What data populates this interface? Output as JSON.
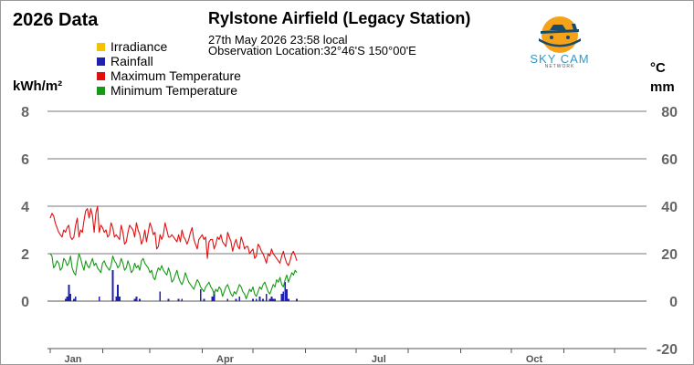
{
  "page": {
    "year_title": "2026 Data",
    "station_title": "Rylstone Airfield (Legacy Station)",
    "observation_time": "27th May 2026  23:58 local",
    "observation_location": "Observation Location:32°46'S 150°00'E",
    "unit_left": "kWh/m²",
    "unit_right_top": "°C",
    "unit_right_bottom": "mm"
  },
  "logo": {
    "name": "SKY CAM",
    "subtitle": "NETWORK"
  },
  "legend": [
    {
      "label": "Irradiance",
      "color": "#f2c200"
    },
    {
      "label": "Rainfall",
      "color": "#1f1fb0"
    },
    {
      "label": "Maximum Temperature",
      "color": "#e01010"
    },
    {
      "label": "Minimum Temperature",
      "color": "#169a16"
    }
  ],
  "chart_data": {
    "type": "line",
    "x_axis": {
      "ticks": [
        "Jan",
        "Apr",
        "Jul",
        "Oct"
      ],
      "days_in_year": 365
    },
    "y_left": {
      "label": "kWh/m²",
      "min": -2,
      "max": 8,
      "ticks": [
        0,
        2,
        4,
        6,
        8
      ]
    },
    "y_right": {
      "label": "°C / mm",
      "min": -20,
      "max": 80,
      "ticks": [
        -20,
        0,
        20,
        40,
        60,
        80
      ]
    },
    "grid": true,
    "series": [
      {
        "name": "Maximum Temperature",
        "color": "#e01010",
        "axis": "right",
        "x_day": [
          1,
          2,
          3,
          4,
          5,
          6,
          7,
          8,
          9,
          10,
          11,
          12,
          13,
          14,
          15,
          16,
          17,
          18,
          19,
          20,
          21,
          22,
          23,
          24,
          25,
          26,
          27,
          28,
          29,
          30,
          31,
          32,
          33,
          34,
          35,
          36,
          37,
          38,
          39,
          40,
          41,
          42,
          43,
          44,
          45,
          46,
          47,
          48,
          49,
          50,
          51,
          52,
          53,
          54,
          55,
          56,
          57,
          58,
          59,
          60,
          61,
          62,
          63,
          64,
          65,
          66,
          67,
          68,
          69,
          70,
          71,
          72,
          73,
          74,
          75,
          76,
          77,
          78,
          79,
          80,
          81,
          82,
          83,
          84,
          85,
          86,
          87,
          88,
          89,
          90,
          91,
          92,
          93,
          94,
          95,
          96,
          97,
          98,
          99,
          100,
          101,
          102,
          103,
          104,
          105,
          106,
          107,
          108,
          109,
          110,
          111,
          112,
          113,
          114,
          115,
          116,
          117,
          118,
          119,
          120,
          121,
          122,
          123,
          124,
          125,
          126,
          127,
          128,
          129,
          130,
          131,
          132,
          133,
          134,
          135,
          136,
          137,
          138,
          139,
          140,
          141,
          142,
          143,
          144,
          145,
          146,
          147
        ],
        "y": [
          35,
          37,
          36,
          33,
          31,
          29,
          28,
          27,
          30,
          29,
          31,
          32,
          27,
          26,
          27,
          32,
          35,
          27,
          30,
          29,
          34,
          38,
          39,
          35,
          39,
          36,
          29,
          37,
          40,
          29,
          32,
          31,
          29,
          30,
          27,
          28,
          33,
          31,
          27,
          28,
          27,
          26,
          32,
          29,
          24,
          25,
          29,
          32,
          31,
          30,
          27,
          33,
          30,
          28,
          24,
          26,
          30,
          25,
          29,
          33,
          31,
          28,
          29,
          22,
          23,
          28,
          26,
          28,
          33,
          30,
          27,
          27,
          28,
          27,
          26,
          25,
          28,
          25,
          30,
          27,
          26,
          24,
          26,
          29,
          31,
          26,
          24,
          22,
          26,
          27,
          28,
          26,
          27,
          18,
          25,
          26,
          26,
          22,
          24,
          27,
          26,
          28,
          25,
          24,
          23,
          29,
          27,
          25,
          21,
          24,
          26,
          23,
          22,
          27,
          25,
          22,
          23,
          23,
          20,
          21,
          22,
          18,
          19,
          24,
          23,
          21,
          20,
          18,
          16,
          20,
          19,
          22,
          20,
          19,
          18,
          17,
          16,
          19,
          21,
          18,
          16,
          15,
          17,
          20,
          21,
          19,
          17
        ]
      },
      {
        "name": "Minimum Temperature",
        "color": "#169a16",
        "axis": "right",
        "x_day": [
          1,
          2,
          3,
          4,
          5,
          6,
          7,
          8,
          9,
          10,
          11,
          12,
          13,
          14,
          15,
          16,
          17,
          18,
          19,
          20,
          21,
          22,
          23,
          24,
          25,
          26,
          27,
          28,
          29,
          30,
          31,
          32,
          33,
          34,
          35,
          36,
          37,
          38,
          39,
          40,
          41,
          42,
          43,
          44,
          45,
          46,
          47,
          48,
          49,
          50,
          51,
          52,
          53,
          54,
          55,
          56,
          57,
          58,
          59,
          60,
          61,
          62,
          63,
          64,
          65,
          66,
          67,
          68,
          69,
          70,
          71,
          72,
          73,
          74,
          75,
          76,
          77,
          78,
          79,
          80,
          81,
          82,
          83,
          84,
          85,
          86,
          87,
          88,
          89,
          90,
          91,
          92,
          93,
          94,
          95,
          96,
          97,
          98,
          99,
          100,
          101,
          102,
          103,
          104,
          105,
          106,
          107,
          108,
          109,
          110,
          111,
          112,
          113,
          114,
          115,
          116,
          117,
          118,
          119,
          120,
          121,
          122,
          123,
          124,
          125,
          126,
          127,
          128,
          129,
          130,
          131,
          132,
          133,
          134,
          135,
          136,
          137,
          138,
          139,
          140,
          141,
          142,
          143,
          144,
          145,
          146,
          147
        ],
        "y": [
          20,
          19,
          14,
          15,
          17,
          16,
          13,
          14,
          18,
          17,
          15,
          16,
          19,
          14,
          12,
          11,
          16,
          20,
          18,
          15,
          13,
          17,
          15,
          14,
          16,
          18,
          15,
          16,
          14,
          13,
          12,
          16,
          17,
          15,
          14,
          13,
          15,
          19,
          17,
          16,
          14,
          15,
          18,
          16,
          13,
          14,
          17,
          15,
          12,
          13,
          16,
          14,
          15,
          13,
          17,
          18,
          16,
          15,
          14,
          12,
          13,
          10,
          9,
          12,
          14,
          13,
          15,
          13,
          12,
          11,
          14,
          12,
          8,
          9,
          11,
          13,
          10,
          8,
          7,
          9,
          12,
          10,
          8,
          7,
          6,
          5,
          7,
          9,
          8,
          6,
          5,
          4,
          6,
          7,
          8,
          6,
          5,
          3,
          5,
          4,
          6,
          5,
          2,
          4,
          6,
          7,
          5,
          3,
          2,
          4,
          3,
          5,
          7,
          6,
          4,
          3,
          1,
          3,
          5,
          4,
          6,
          3,
          2,
          4,
          6,
          5,
          7,
          8,
          6,
          4,
          3,
          5,
          7,
          6,
          9,
          8,
          10,
          7,
          6,
          9,
          11,
          8,
          10,
          12,
          11,
          13,
          12
        ]
      },
      {
        "name": "Rainfall",
        "color": "#1f1fb0",
        "axis": "right",
        "type": "bar",
        "x_day": [
          10,
          11,
          12,
          13,
          15,
          16,
          30,
          38,
          40,
          41,
          42,
          51,
          52,
          54,
          66,
          71,
          77,
          79,
          90,
          92,
          97,
          98,
          106,
          111,
          113,
          121,
          123,
          125,
          127,
          129,
          131,
          132,
          133,
          134,
          138,
          139,
          140,
          141,
          142,
          147
        ],
        "y": [
          1,
          2,
          7,
          3,
          1,
          2,
          2,
          13,
          2,
          7,
          2,
          1,
          2,
          1,
          4,
          1,
          1,
          1,
          5,
          1,
          2,
          4,
          1,
          1,
          2,
          1,
          1,
          2,
          1,
          3,
          1,
          2,
          1,
          1,
          3,
          4,
          8,
          5,
          1,
          1
        ]
      }
    ]
  }
}
